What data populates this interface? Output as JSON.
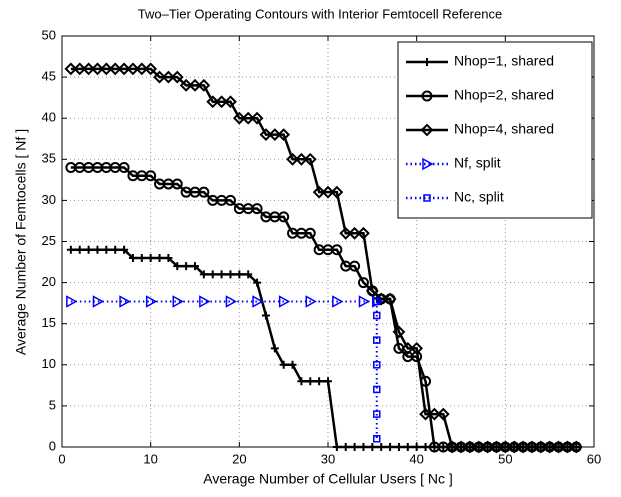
{
  "chart_data": {
    "type": "line",
    "title": "Two–Tier Operating Contours with Interior Femtocell Reference",
    "x_label": "Average Number of Cellular Users [ Nc ]",
    "y_label": "Average Number of Femtocells [ Nf ]",
    "xlim": [
      0,
      60
    ],
    "ylim": [
      0,
      50
    ],
    "xticks": [
      0,
      10,
      20,
      30,
      40,
      50,
      60
    ],
    "yticks": [
      0,
      5,
      10,
      15,
      20,
      25,
      30,
      35,
      40,
      45,
      50
    ],
    "grid": true,
    "legend": "upper right",
    "series": [
      {
        "name": "Nhop=1, shared",
        "color": "#000000",
        "marker": "plus",
        "style": "solid",
        "x": [
          1,
          2,
          3,
          4,
          5,
          6,
          7,
          8,
          9,
          10,
          11,
          12,
          13,
          14,
          15,
          16,
          17,
          18,
          19,
          20,
          21,
          22,
          23,
          24,
          25,
          26,
          27,
          28,
          29,
          30,
          31,
          32,
          33,
          34,
          35,
          36,
          37,
          38,
          39,
          40,
          41,
          42,
          43,
          44,
          45,
          46,
          47,
          48,
          49,
          50,
          51,
          52,
          53,
          54,
          55,
          56,
          57,
          58
        ],
        "values": [
          24,
          24,
          24,
          24,
          24,
          24,
          24,
          23,
          23,
          23,
          23,
          23,
          22,
          22,
          22,
          21,
          21,
          21,
          21,
          21,
          21,
          20,
          16,
          12,
          10,
          10,
          8,
          8,
          8,
          8,
          0,
          0,
          0,
          0,
          0,
          0,
          0,
          0,
          0,
          0,
          0,
          0,
          0,
          0,
          0,
          0,
          0,
          0,
          0,
          0,
          0,
          0,
          0,
          0,
          0,
          0,
          0,
          0
        ]
      },
      {
        "name": "Nhop=2, shared",
        "color": "#000000",
        "marker": "circle",
        "style": "solid",
        "x": [
          1,
          2,
          3,
          4,
          5,
          6,
          7,
          8,
          9,
          10,
          11,
          12,
          13,
          14,
          15,
          16,
          17,
          18,
          19,
          20,
          21,
          22,
          23,
          24,
          25,
          26,
          27,
          28,
          29,
          30,
          31,
          32,
          33,
          34,
          35,
          36,
          37,
          38,
          39,
          40,
          41,
          42,
          43,
          44,
          45,
          46,
          47,
          48,
          49,
          50,
          51,
          52,
          53,
          54,
          55,
          56,
          57,
          58
        ],
        "values": [
          34,
          34,
          34,
          34,
          34,
          34,
          34,
          33,
          33,
          33,
          32,
          32,
          32,
          31,
          31,
          31,
          30,
          30,
          30,
          29,
          29,
          29,
          28,
          28,
          28,
          26,
          26,
          26,
          24,
          24,
          24,
          22,
          22,
          20,
          19,
          18,
          18,
          12,
          11,
          11,
          8,
          0,
          0,
          0,
          0,
          0,
          0,
          0,
          0,
          0,
          0,
          0,
          0,
          0,
          0,
          0,
          0,
          0
        ]
      },
      {
        "name": "Nhop=4, shared",
        "color": "#000000",
        "marker": "diamond",
        "style": "solid",
        "x": [
          1,
          2,
          3,
          4,
          5,
          6,
          7,
          8,
          9,
          10,
          11,
          12,
          13,
          14,
          15,
          16,
          17,
          18,
          19,
          20,
          21,
          22,
          23,
          24,
          25,
          26,
          27,
          28,
          29,
          30,
          31,
          32,
          33,
          34,
          35,
          36,
          37,
          38,
          39,
          40,
          41,
          42,
          43,
          44,
          45,
          46,
          47,
          48,
          49,
          50,
          51,
          52,
          53,
          54,
          55,
          56,
          57,
          58
        ],
        "values": [
          46,
          46,
          46,
          46,
          46,
          46,
          46,
          46,
          46,
          46,
          45,
          45,
          45,
          44,
          44,
          44,
          42,
          42,
          42,
          40,
          40,
          40,
          38,
          38,
          38,
          35,
          35,
          35,
          31,
          31,
          31,
          26,
          26,
          26,
          19,
          18,
          18,
          14,
          12,
          12,
          4,
          4,
          4,
          0,
          0,
          0,
          0,
          0,
          0,
          0,
          0,
          0,
          0,
          0,
          0,
          0,
          0,
          0
        ]
      },
      {
        "name": "Nf, split",
        "color": "#0000ff",
        "marker": "triangle",
        "style": "dotted",
        "x": [
          1,
          4,
          7,
          10,
          13,
          16,
          19,
          22,
          25,
          28,
          31,
          34,
          35.5
        ],
        "values": [
          17.7,
          17.7,
          17.7,
          17.7,
          17.7,
          17.7,
          17.7,
          17.7,
          17.7,
          17.7,
          17.7,
          17.7,
          17.7
        ]
      },
      {
        "name": "Nc, split",
        "color": "#0000ff",
        "marker": "square",
        "style": "dotted",
        "x": [
          35.5,
          35.5,
          35.5,
          35.5,
          35.5,
          35.5,
          35.5
        ],
        "values": [
          17.7,
          16,
          13,
          10,
          7,
          4,
          1
        ]
      }
    ]
  }
}
